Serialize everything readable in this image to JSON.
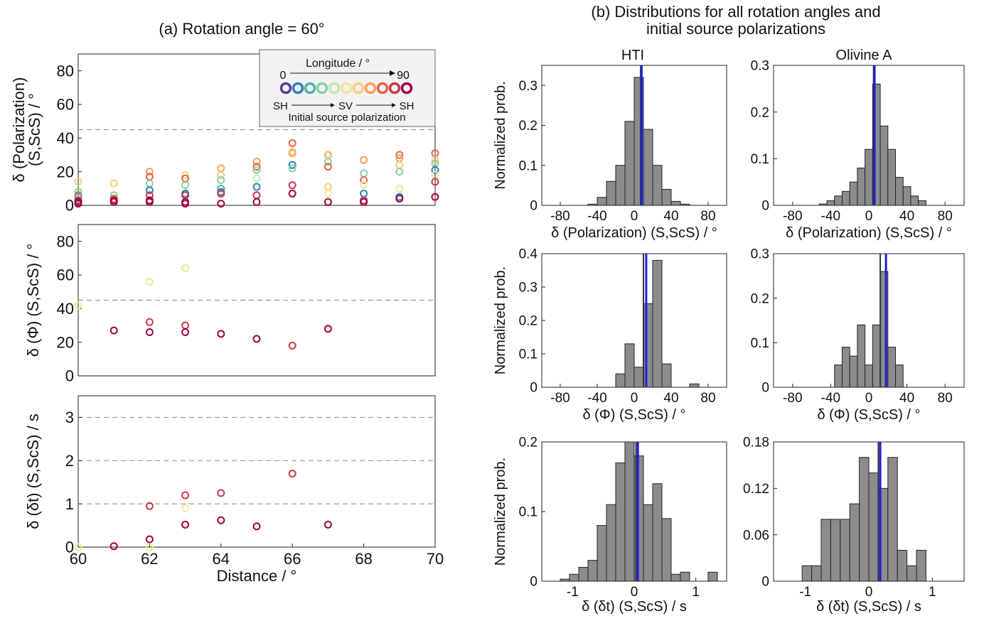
{
  "figure": {
    "title_a": "(a) Rotation angle = 60°",
    "title_b_line1": "(b) Distributions for all rotation angles and",
    "title_b_line2": "initial source polarizations",
    "col_hti": "HTI",
    "col_olivine": "Olivine A"
  },
  "legend": {
    "longitude_label": "Longitude / °",
    "lon_start": "0",
    "lon_end": "90",
    "pol_sh1": "SH",
    "pol_sv": "SV",
    "pol_sh2": "SH",
    "pol_caption": "Initial source polarization",
    "colors": [
      "#5a3d99",
      "#2b83ba",
      "#4fb3ad",
      "#88d0a4",
      "#c7e9ad",
      "#f0e89a",
      "#f7cf7e",
      "#f4a25c",
      "#e8644a",
      "#c93a4a",
      "#9e0142"
    ]
  },
  "chart_data": [
    {
      "type": "scatter",
      "panel": "a1",
      "ylabel_line1": "δ (Polarization)",
      "ylabel_line2": "(S,ScS) / °",
      "xlim": [
        60,
        70
      ],
      "ylim": [
        0,
        90
      ],
      "yticks": [
        0,
        20,
        40,
        60,
        80
      ],
      "ytick_labels": [
        "0",
        "20",
        "40",
        "60",
        "80"
      ],
      "hlines": [
        45
      ],
      "points": [
        [
          60,
          14,
          6
        ],
        [
          60,
          8,
          3
        ],
        [
          60,
          6,
          8
        ],
        [
          60,
          5,
          2
        ],
        [
          60,
          3,
          9
        ],
        [
          60,
          2,
          10
        ],
        [
          60,
          1,
          10
        ],
        [
          61,
          13,
          6
        ],
        [
          61,
          6,
          3
        ],
        [
          61,
          4,
          8
        ],
        [
          61,
          3,
          10
        ],
        [
          61,
          2,
          10
        ],
        [
          62,
          20,
          7
        ],
        [
          62,
          17,
          8
        ],
        [
          62,
          13,
          3
        ],
        [
          62,
          9,
          1
        ],
        [
          62,
          6,
          9
        ],
        [
          62,
          3,
          10
        ],
        [
          62,
          2,
          10
        ],
        [
          63,
          18,
          6
        ],
        [
          63,
          16,
          8
        ],
        [
          63,
          12,
          3
        ],
        [
          63,
          7,
          1
        ],
        [
          63,
          6,
          9
        ],
        [
          63,
          2,
          10
        ],
        [
          63,
          1,
          10
        ],
        [
          64,
          22,
          7
        ],
        [
          64,
          18,
          6
        ],
        [
          64,
          15,
          3
        ],
        [
          64,
          10,
          2
        ],
        [
          64,
          8,
          1
        ],
        [
          64,
          7,
          9
        ],
        [
          64,
          1,
          10
        ],
        [
          65,
          26,
          7
        ],
        [
          65,
          23,
          8
        ],
        [
          65,
          21,
          3
        ],
        [
          65,
          16,
          4
        ],
        [
          65,
          11,
          1
        ],
        [
          65,
          6,
          9
        ],
        [
          65,
          2,
          10
        ],
        [
          66,
          37,
          8
        ],
        [
          66,
          32,
          6
        ],
        [
          66,
          31,
          7
        ],
        [
          66,
          24,
          1
        ],
        [
          66,
          22,
          3
        ],
        [
          66,
          12,
          9
        ],
        [
          66,
          7,
          10
        ],
        [
          67,
          30,
          7
        ],
        [
          67,
          26,
          3
        ],
        [
          67,
          23,
          8
        ],
        [
          67,
          11,
          6
        ],
        [
          67,
          7,
          5
        ],
        [
          67,
          2,
          10
        ],
        [
          68,
          27,
          7
        ],
        [
          68,
          19,
          3
        ],
        [
          68,
          15,
          8
        ],
        [
          68,
          12,
          5
        ],
        [
          68,
          7,
          1
        ],
        [
          68,
          3,
          9
        ],
        [
          68,
          2,
          10
        ],
        [
          69,
          30,
          8
        ],
        [
          69,
          28,
          7
        ],
        [
          69,
          24,
          6
        ],
        [
          69,
          20,
          3
        ],
        [
          69,
          10,
          5
        ],
        [
          69,
          5,
          1
        ],
        [
          69,
          4,
          10
        ],
        [
          70,
          31,
          8
        ],
        [
          70,
          27,
          6
        ],
        [
          70,
          25,
          3
        ],
        [
          70,
          21,
          1
        ],
        [
          70,
          18,
          5
        ],
        [
          70,
          14,
          9
        ],
        [
          70,
          5,
          10
        ]
      ]
    },
    {
      "type": "scatter",
      "panel": "a2",
      "ylabel": "δ (Φ) (S,ScS) / °",
      "xlim": [
        60,
        70
      ],
      "ylim": [
        0,
        90
      ],
      "yticks": [
        0,
        20,
        40,
        60,
        80
      ],
      "ytick_labels": [
        "0",
        "20",
        "40",
        "60",
        "80"
      ],
      "hlines": [
        45
      ],
      "points": [
        [
          60,
          42,
          5
        ],
        [
          61,
          27,
          10
        ],
        [
          62,
          56,
          5
        ],
        [
          62,
          32,
          9
        ],
        [
          62,
          26,
          10
        ],
        [
          63,
          64,
          5
        ],
        [
          63,
          30,
          9
        ],
        [
          63,
          26,
          10
        ],
        [
          64,
          25,
          10
        ],
        [
          65,
          22,
          10
        ],
        [
          66,
          18,
          9
        ],
        [
          67,
          28,
          10
        ]
      ]
    },
    {
      "type": "scatter",
      "panel": "a3",
      "ylabel": "δ (δt) (S,ScS) / s",
      "xlabel": "Distance / °",
      "xlim": [
        60,
        70
      ],
      "ylim": [
        0,
        3.5
      ],
      "yticks": [
        0,
        1,
        2,
        3
      ],
      "ytick_labels": [
        "0",
        "1",
        "2",
        "3"
      ],
      "xticks": [
        60,
        62,
        64,
        66,
        68,
        70
      ],
      "xtick_labels": [
        "60",
        "62",
        "64",
        "66",
        "68",
        "70"
      ],
      "hlines": [
        1,
        2,
        3
      ],
      "points": [
        [
          60,
          0,
          5
        ],
        [
          61,
          0.02,
          10
        ],
        [
          62,
          0.95,
          9
        ],
        [
          62,
          0.18,
          10
        ],
        [
          62,
          0,
          5
        ],
        [
          63,
          1.2,
          9
        ],
        [
          63,
          0.9,
          5
        ],
        [
          63,
          0.52,
          10
        ],
        [
          64,
          1.25,
          9
        ],
        [
          64,
          0.62,
          10
        ],
        [
          65,
          0.48,
          10
        ],
        [
          66,
          1.7,
          9
        ],
        [
          67,
          0.52,
          10
        ]
      ]
    },
    {
      "type": "bar",
      "panel": "b-hti-pol",
      "xlabel": "δ (Polarization) (S,ScS) / °",
      "ylabel": "Normalized prob.",
      "xlim": [
        -100,
        100
      ],
      "ylim": [
        0,
        0.35
      ],
      "xticks": [
        -80,
        -40,
        0,
        40,
        80
      ],
      "xtick_labels": [
        "-80",
        "-40",
        "0",
        "40",
        "80"
      ],
      "yticks": [
        0,
        0.1,
        0.2,
        0.3
      ],
      "ytick_labels": [
        "0",
        "0.1",
        "0.2",
        "0.3"
      ],
      "bin_width": 10,
      "bin_start": -50,
      "values": [
        0.003,
        0.02,
        0.06,
        0.1,
        0.21,
        0.32,
        0.19,
        0.1,
        0.04,
        0.01,
        0.003
      ],
      "mean_line": 8,
      "median_line": 7
    },
    {
      "type": "bar",
      "panel": "b-ol-pol",
      "xlabel": "δ (Polarization) (S,ScS) / °",
      "xlim": [
        -100,
        100
      ],
      "ylim": [
        0,
        0.3
      ],
      "xticks": [
        -80,
        -40,
        0,
        40,
        80
      ],
      "xtick_labels": [
        "-80",
        "-40",
        "0",
        "40",
        "80"
      ],
      "yticks": [
        0,
        0.1,
        0.2,
        0.3
      ],
      "ytick_labels": [
        "0",
        "0.1",
        "0.2",
        "0.3"
      ],
      "bin_width": 8,
      "bin_start": -52,
      "values": [
        0.003,
        0.01,
        0.02,
        0.03,
        0.05,
        0.08,
        0.12,
        0.26,
        0.17,
        0.12,
        0.06,
        0.04,
        0.02,
        0.01
      ],
      "mean_line": 6,
      "median_line": 5
    },
    {
      "type": "bar",
      "panel": "b-hti-phi",
      "xlabel": "δ (Φ) (S,ScS) / °",
      "ylabel": "Normalized prob.",
      "xlim": [
        -100,
        100
      ],
      "ylim": [
        0,
        0.4
      ],
      "xticks": [
        -80,
        -40,
        0,
        40,
        80
      ],
      "xtick_labels": [
        "-80",
        "-40",
        "0",
        "40",
        "80"
      ],
      "yticks": [
        0,
        0.1,
        0.2,
        0.3,
        0.4
      ],
      "ytick_labels": [
        "0",
        "0.1",
        "0.2",
        "0.3",
        "0.4"
      ],
      "bin_width": 10,
      "bin_start": -20,
      "values": [
        0.04,
        0.13,
        0.06,
        0.25,
        0.38,
        0.07,
        0.0,
        0.0,
        0.01
      ],
      "mean_line": 13,
      "median_line": 10
    },
    {
      "type": "bar",
      "panel": "b-ol-phi",
      "xlabel": "δ (Φ) (S,ScS) / °",
      "xlim": [
        -100,
        100
      ],
      "ylim": [
        0,
        0.3
      ],
      "xticks": [
        -80,
        -40,
        0,
        40,
        80
      ],
      "xtick_labels": [
        "-80",
        "-40",
        "0",
        "40",
        "80"
      ],
      "yticks": [
        0,
        0.1,
        0.2,
        0.3
      ],
      "ytick_labels": [
        "0",
        "0.1",
        "0.2",
        "0.3"
      ],
      "bin_width": 8,
      "bin_start": -36,
      "values": [
        0.05,
        0.09,
        0.07,
        0.14,
        0.05,
        0.14,
        0.26,
        0.09,
        0.05
      ],
      "mean_line": 18,
      "median_line": 12
    },
    {
      "type": "bar",
      "panel": "b-hti-dt",
      "xlabel": "δ (δt) (S,ScS) / s",
      "ylabel": "Normalized prob.",
      "xlim": [
        -1.5,
        1.5
      ],
      "ylim": [
        0,
        0.2
      ],
      "xticks": [
        -1,
        0,
        1
      ],
      "xtick_labels": [
        "-1",
        "0",
        "1"
      ],
      "yticks": [
        0,
        0.1,
        0.2
      ],
      "ytick_labels": [
        "0",
        "0.1",
        "0.2"
      ],
      "bin_width": 0.15,
      "bin_start": -1.2,
      "values": [
        0.003,
        0.01,
        0.02,
        0.03,
        0.08,
        0.11,
        0.17,
        0.2,
        0.18,
        0.11,
        0.14,
        0.09,
        0.01,
        0.013,
        0.0,
        0.0,
        0.013
      ],
      "mean_line": 0.06,
      "median_line": 0.03
    },
    {
      "type": "bar",
      "panel": "b-ol-dt",
      "xlabel": "δ (δt) (S,ScS) / s",
      "xlim": [
        -1.5,
        1.5
      ],
      "ylim": [
        0,
        0.18
      ],
      "xticks": [
        -1,
        0,
        1
      ],
      "xtick_labels": [
        "-1",
        "0",
        "1"
      ],
      "yticks": [
        0,
        0.06,
        0.12,
        0.18
      ],
      "ytick_labels": [
        "0",
        "0.06",
        "0.12",
        "0.18"
      ],
      "bin_width": 0.15,
      "bin_start": -1.05,
      "values": [
        0.02,
        0.02,
        0.08,
        0.08,
        0.08,
        0.1,
        0.16,
        0.14,
        0.12,
        0.16,
        0.04,
        0.02,
        0.04
      ],
      "mean_line": 0.18,
      "median_line": 0.15
    }
  ]
}
